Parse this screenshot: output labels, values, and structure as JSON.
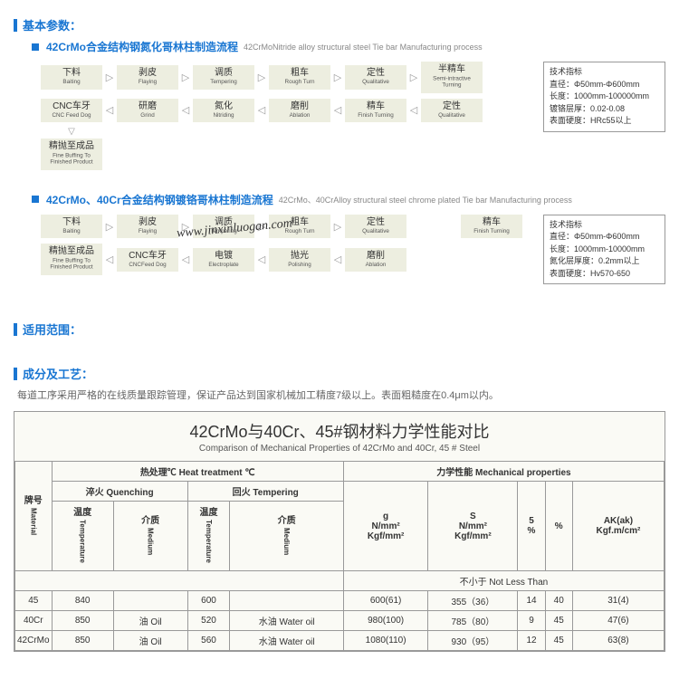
{
  "sections": {
    "basic": "基本参数：",
    "scope": "适用范围：",
    "comp": "成分及工艺："
  },
  "proc1": {
    "title_cn": "42CrMo合金结构钢氮化哥林柱制造流程",
    "title_en": "42CrMoNitride alloy structural steel Tie bar Manufacturing process",
    "r1": [
      {
        "cn": "下料",
        "en": "Baiting"
      },
      {
        "cn": "剥皮",
        "en": "Flaying"
      },
      {
        "cn": "调质",
        "en": "Tempering"
      },
      {
        "cn": "粗车",
        "en": "Rough Turn"
      },
      {
        "cn": "定性",
        "en": "Qualitative"
      },
      {
        "cn": "半精车",
        "en": "Semi-intractive Turning"
      }
    ],
    "r2": [
      {
        "cn": "CNC车牙",
        "en": "CNC Feed Dog"
      },
      {
        "cn": "研磨",
        "en": "Grind"
      },
      {
        "cn": "氮化",
        "en": "Nitriding"
      },
      {
        "cn": "磨削",
        "en": "Ablation"
      },
      {
        "cn": "精车",
        "en": "Finish Turning"
      },
      {
        "cn": "定性",
        "en": "Qualitative"
      }
    ],
    "r3": {
      "cn": "精抛至成品",
      "en": "Fine Buffing To Finished Product"
    },
    "specs": [
      "技术指标",
      "直径：Φ50mm-Φ600mm",
      "长度：1000mm-100000mm",
      "镀铬层厚：0.02-0.08",
      "表面硬度：HRc55以上"
    ]
  },
  "proc2": {
    "title_cn": "42CrMo、40Cr合金结构钢镀铬哥林柱制造流程",
    "title_en": "42CrMo、40CrAlloy structural steel chrome plated Tie bar Manufacturing process",
    "r1": [
      {
        "cn": "下料",
        "en": "Baiting"
      },
      {
        "cn": "剥皮",
        "en": "Flaying"
      },
      {
        "cn": "调质",
        "en": "Tempering"
      },
      {
        "cn": "粗车",
        "en": "Rough Turn"
      },
      {
        "cn": "定性",
        "en": "Qualitative"
      }
    ],
    "r1b": {
      "cn": "精车",
      "en": "Finish Turning"
    },
    "r2": [
      {
        "cn": "精抛至成品",
        "en": "Fine Buffing To Finished Product"
      },
      {
        "cn": "CNC车牙",
        "en": "CNCFeed Dog"
      },
      {
        "cn": "电镀",
        "en": "Electroplate"
      },
      {
        "cn": "抛光",
        "en": "Polishing"
      },
      {
        "cn": "磨削",
        "en": "Ablation"
      }
    ],
    "specs": [
      "技术指标",
      "直径：Φ50mm-Φ600mm",
      "长度：1000mm-10000mm",
      "氮化层厚度：0.2mm以上",
      "表面硬度：Hv570-650"
    ]
  },
  "desc": "每道工序采用严格的在线质量跟踪管理，保证产品达到国家机械加工精度7级以上。表面粗糙度在0.4μm以内。",
  "tbl": {
    "title_cn": "42CrMo与40Cr、45#钢材料力学性能对比",
    "title_en": "Comparison of Mechanical Properties of 42CrMo and 40Cr, 45 # Steel",
    "h": {
      "mat": "牌号",
      "mat_en": "Material",
      "heat": "热处理℃ Heat treatment ℃",
      "mech": "力学性能 Mechanical properties",
      "quench": "淬火 Quenching",
      "temper": "回火 Tempering",
      "temp": "温度",
      "temp_en": "Temperature",
      "med": "介质",
      "med_en": "Medium",
      "g": "g\nN/mm²\nKgf/mm²",
      "s": "S\nN/mm²\nKgf/mm²",
      "s5": "5\n%",
      "pct": "%",
      "ak": "AK(ak)\nKgf.m/cm²",
      "nlt": "不小于  Not Less Than"
    },
    "rows": [
      {
        "m": "45",
        "qt": "840",
        "qm": "",
        "tt": "600",
        "tm": "",
        "g": "600(61)",
        "s": "355（36）",
        "s5": "14",
        "p": "40",
        "ak": "31(4)"
      },
      {
        "m": "40Cr",
        "qt": "850",
        "qm": "油 Oil",
        "tt": "520",
        "tm": "水油 Water oil",
        "g": "980(100)",
        "s": "785（80）",
        "s5": "9",
        "p": "45",
        "ak": "47(6)"
      },
      {
        "m": "42CrMo",
        "qt": "850",
        "qm": "油 Oil",
        "tt": "560",
        "tm": "水油 Water oil",
        "g": "1080(110)",
        "s": "930（95）",
        "s5": "12",
        "p": "45",
        "ak": "63(8)"
      }
    ]
  },
  "wm": "www.jinxinluogan.com"
}
